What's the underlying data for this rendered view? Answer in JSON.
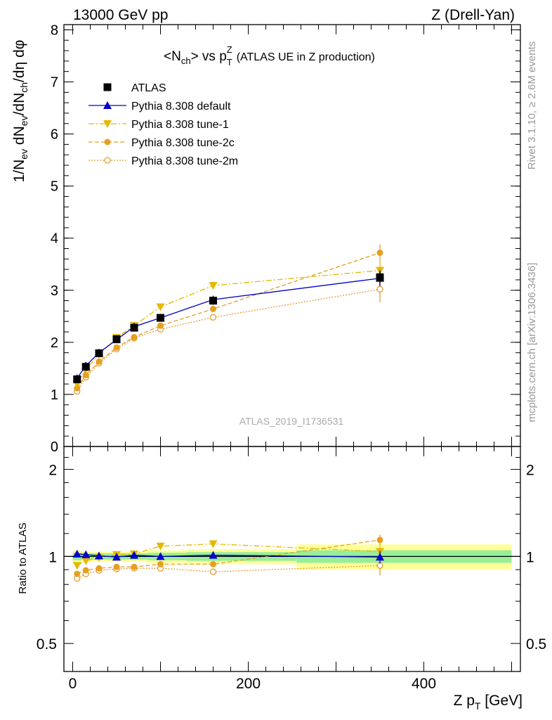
{
  "header": {
    "left": "13000 GeV pp",
    "right": "Z (Drell-Yan)"
  },
  "side_labels": {
    "rivet": "Rivet 3.1.10, ≥ 2.6M events",
    "mcplots": "mcplots.cern.ch [arXiv:1306.3436]"
  },
  "watermark": "ATLAS_2019_I1736531",
  "colors": {
    "atlas": "#000000",
    "default": "#0000cc",
    "tune1": "#e6b800",
    "tune2c": "#e6a020",
    "tune2m": "#e69b33",
    "band_inner": "#99ee99",
    "band_outer": "#ffff99"
  },
  "chart_data": [
    {
      "type": "scatter",
      "panel": "main",
      "title_parts": {
        "a": "<N",
        "a_sub": "ch",
        "b": "> vs p",
        "b_sub": "T",
        "b_sup": "Z",
        "c": "(ATLAS UE in Z production)"
      },
      "ylabel_parts": [
        "1/N",
        "ev",
        " dN",
        "ev",
        "/dN",
        "ch",
        "/dη dφ"
      ],
      "xlim": [
        -10,
        510
      ],
      "ylim": [
        0,
        8.1
      ],
      "y_ticks": [
        0,
        1,
        2,
        3,
        4,
        5,
        6,
        7,
        8
      ],
      "legend_position": "top-left",
      "series": [
        {
          "name": "ATLAS",
          "marker": "square",
          "x": [
            5,
            15,
            30,
            50,
            70,
            100,
            160,
            350
          ],
          "y": [
            1.29,
            1.53,
            1.79,
            2.06,
            2.28,
            2.47,
            2.8,
            3.25
          ],
          "err": [
            0.04,
            0.04,
            0.05,
            0.05,
            0.06,
            0.07,
            0.08,
            0.12
          ]
        },
        {
          "name": "Pythia 8.308 default",
          "marker": "triangle-up",
          "line": "solid",
          "x": [
            5,
            15,
            30,
            50,
            70,
            100,
            160,
            350
          ],
          "y": [
            1.31,
            1.55,
            1.8,
            2.05,
            2.3,
            2.47,
            2.82,
            3.23
          ],
          "err": [
            0.02,
            0.02,
            0.03,
            0.03,
            0.03,
            0.04,
            0.06,
            0.15
          ]
        },
        {
          "name": "Pythia 8.308 tune-1",
          "marker": "triangle-down",
          "line": "dashdot",
          "x": [
            5,
            15,
            30,
            50,
            70,
            100,
            160,
            350
          ],
          "y": [
            1.2,
            1.48,
            1.77,
            2.09,
            2.32,
            2.68,
            3.09,
            3.38
          ],
          "err": [
            0.02,
            0.02,
            0.03,
            0.03,
            0.03,
            0.04,
            0.07,
            0.2
          ]
        },
        {
          "name": "Pythia 8.308 tune-2c",
          "marker": "circle",
          "line": "dashed",
          "x": [
            5,
            15,
            30,
            50,
            70,
            100,
            160,
            350
          ],
          "y": [
            1.12,
            1.37,
            1.63,
            1.9,
            2.1,
            2.32,
            2.64,
            3.72
          ],
          "err": [
            0.02,
            0.02,
            0.03,
            0.03,
            0.03,
            0.04,
            0.06,
            0.16
          ]
        },
        {
          "name": "Pythia 8.308 tune-2m",
          "marker": "circle-open",
          "line": "dotted",
          "x": [
            5,
            15,
            30,
            50,
            70,
            100,
            160,
            350
          ],
          "y": [
            1.06,
            1.33,
            1.6,
            1.87,
            2.08,
            2.25,
            2.48,
            3.02
          ],
          "err": [
            0.02,
            0.02,
            0.03,
            0.03,
            0.03,
            0.04,
            0.06,
            0.25
          ]
        }
      ]
    },
    {
      "type": "scatter",
      "panel": "ratio",
      "ylabel": "Ratio to ATLAS",
      "xlabel_parts": [
        "Z p",
        "T",
        " [GeV]"
      ],
      "xlim": [
        -10,
        510
      ],
      "ylim": [
        0.4,
        2.4
      ],
      "y_ticks": [
        0.5,
        1,
        2
      ],
      "y_ticks_minor": [
        0.6,
        0.7,
        0.8,
        0.9,
        1.2,
        1.4,
        1.6,
        1.8,
        2.2
      ],
      "x_ticks": [
        0,
        200,
        400
      ],
      "bands": [
        {
          "x": [
            5,
            15,
            30,
            50,
            70,
            100,
            160,
            350
          ],
          "lo_outer": [
            0.95,
            0.96,
            0.96,
            0.96,
            0.96,
            0.95,
            0.94,
            0.9
          ],
          "hi_outer": [
            1.05,
            1.04,
            1.04,
            1.04,
            1.04,
            1.05,
            1.06,
            1.1
          ],
          "lo_inner": [
            0.97,
            0.975,
            0.975,
            0.975,
            0.975,
            0.97,
            0.965,
            0.95
          ],
          "hi_inner": [
            1.03,
            1.025,
            1.025,
            1.025,
            1.025,
            1.03,
            1.035,
            1.05
          ]
        }
      ],
      "series": [
        {
          "name": "Pythia 8.308 default",
          "x": [
            5,
            15,
            30,
            50,
            70,
            100,
            160,
            350
          ],
          "y": [
            1.02,
            1.015,
            1.005,
            0.995,
            1.01,
            1.0,
            1.01,
            0.995
          ],
          "err": [
            0.01,
            0.01,
            0.01,
            0.01,
            0.01,
            0.015,
            0.02,
            0.05
          ]
        },
        {
          "name": "Pythia 8.308 tune-1",
          "x": [
            5,
            15,
            30,
            50,
            70,
            100,
            160,
            350
          ],
          "y": [
            0.93,
            0.965,
            0.99,
            1.015,
            1.02,
            1.085,
            1.105,
            1.04
          ],
          "err": [
            0.01,
            0.01,
            0.01,
            0.01,
            0.01,
            0.015,
            0.02,
            0.06
          ]
        },
        {
          "name": "Pythia 8.308 tune-2c",
          "x": [
            5,
            15,
            30,
            50,
            70,
            100,
            160,
            350
          ],
          "y": [
            0.87,
            0.895,
            0.91,
            0.92,
            0.92,
            0.94,
            0.94,
            1.14
          ],
          "err": [
            0.01,
            0.01,
            0.01,
            0.01,
            0.01,
            0.015,
            0.02,
            0.05
          ]
        },
        {
          "name": "Pythia 8.308 tune-2m",
          "x": [
            5,
            15,
            30,
            50,
            70,
            100,
            160,
            350
          ],
          "y": [
            0.84,
            0.87,
            0.895,
            0.905,
            0.91,
            0.91,
            0.885,
            0.93
          ],
          "err": [
            0.01,
            0.01,
            0.01,
            0.01,
            0.01,
            0.015,
            0.02,
            0.07
          ]
        }
      ]
    }
  ]
}
